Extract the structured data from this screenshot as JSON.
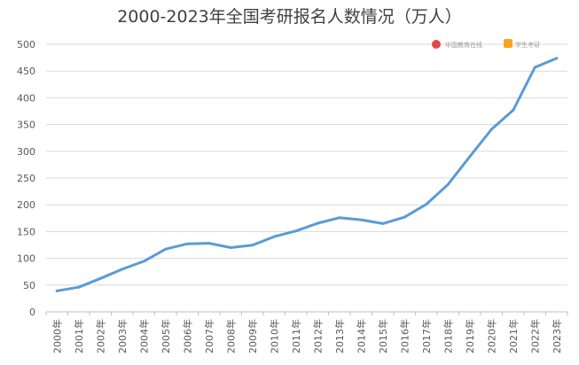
{
  "chart_data": {
    "type": "line",
    "title": "2000-2023年全国考研报名人数情况（万人）",
    "xlabel": "",
    "ylabel": "",
    "ylim": [
      0,
      500
    ],
    "yticks": [
      0,
      50,
      100,
      150,
      200,
      250,
      300,
      350,
      400,
      450,
      500
    ],
    "grid": true,
    "legend": "none",
    "line_color": "#5b9bd5",
    "categories": [
      "2000年",
      "2001年",
      "2002年",
      "2003年",
      "2004年",
      "2005年",
      "2006年",
      "2007年",
      "2008年",
      "2009年",
      "2010年",
      "2011年",
      "2012年",
      "2013年",
      "2014年",
      "2015年",
      "2016年",
      "2017年",
      "2018年",
      "2019年",
      "2020年",
      "2021年",
      "2022年",
      "2023年"
    ],
    "series": [
      {
        "values": [
          39.2,
          46,
          62.4,
          79.7,
          94.5,
          117.2,
          127.1,
          128.2,
          120,
          124.6,
          140.6,
          151.1,
          165.6,
          176,
          172,
          164.9,
          177,
          201,
          238,
          290,
          341,
          377,
          457,
          474
        ]
      }
    ]
  },
  "watermarks": [
    {
      "icon": "red-circle-logo-icon",
      "text": "中国教育在线"
    },
    {
      "icon": "orange-square-logo-icon",
      "text": "学生考研"
    }
  ]
}
